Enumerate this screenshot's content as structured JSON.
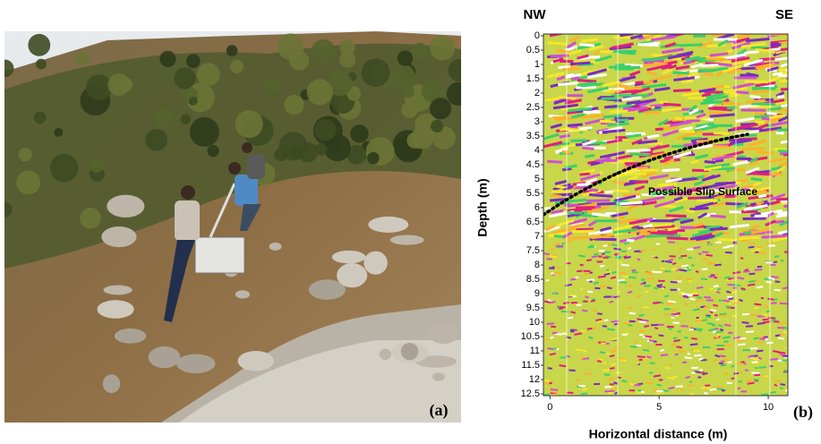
{
  "panel_a": {
    "label": "(a)"
  },
  "panel_b": {
    "left_direction": "NW",
    "right_direction": "SE",
    "y_label": "Depth (m)",
    "x_label": "Horizontal distance (m)",
    "annotation": "Possible Slip Surface",
    "label": "(b)",
    "ylim": [
      0,
      12.5
    ],
    "yticks": [
      0,
      0.5,
      1,
      1.5,
      2,
      2.5,
      3,
      3.5,
      4,
      4.5,
      5,
      5.5,
      6,
      6.5,
      7,
      7.5,
      8,
      8.5,
      9,
      9.5,
      10,
      10.5,
      11,
      11.5,
      12,
      12.5
    ],
    "xlim": [
      -0.3,
      10.9
    ],
    "xticks": [
      0,
      5,
      10
    ]
  }
}
